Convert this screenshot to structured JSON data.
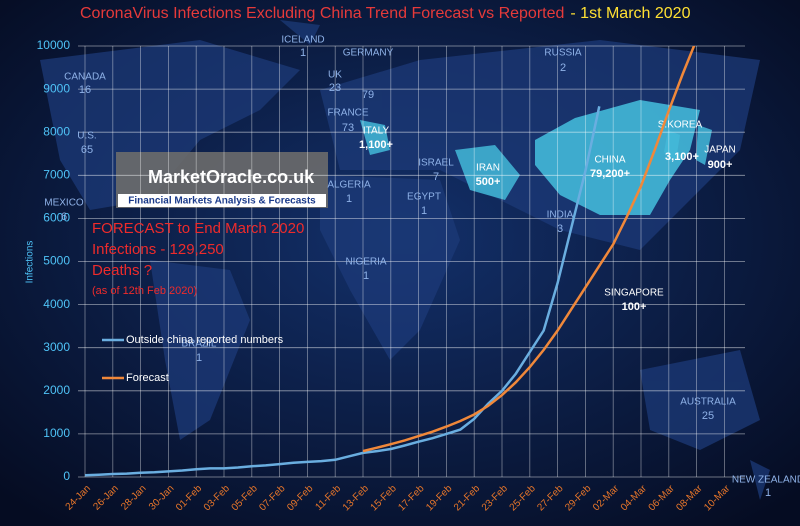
{
  "chart_data": {
    "type": "line",
    "title": "CoronaVirus Infections Excluding China Trend Forecast vs Reported",
    "title_date": "- 1st March 2020",
    "y_label": "Infections",
    "categories": [
      "24-Jan",
      null,
      "26-Jan",
      null,
      "28-Jan",
      null,
      "30-Jan",
      null,
      "01-Feb",
      null,
      "03-Feb",
      null,
      "05-Feb",
      null,
      "07-Feb",
      null,
      "09-Feb",
      null,
      "11-Feb",
      null,
      "13-Feb",
      null,
      "15-Feb",
      null,
      "17-Feb",
      null,
      "19-Feb",
      null,
      "21-Feb",
      null,
      "23-Feb",
      null,
      "25-Feb",
      null,
      "27-Feb",
      null,
      "29-Feb",
      null,
      "02-Mar",
      null,
      "04-Mar",
      null,
      "06-Mar",
      null,
      "08-Mar",
      null,
      "10-Mar"
    ],
    "series": [
      {
        "name": "Outside china reported numbers",
        "color": "#6aaee0",
        "values": [
          40,
          50,
          70,
          80,
          100,
          110,
          130,
          150,
          180,
          200,
          200,
          220,
          250,
          270,
          300,
          330,
          350,
          370,
          400,
          480,
          560,
          600,
          650,
          730,
          820,
          900,
          1000,
          1100,
          1350,
          1700,
          2000,
          2400,
          2900,
          3400,
          4500,
          5800,
          7100,
          8600,
          null,
          null,
          null,
          null,
          null,
          null,
          null,
          null,
          null
        ]
      },
      {
        "name": "Forecast",
        "color": "#f0883a",
        "values": [
          null,
          null,
          null,
          null,
          null,
          null,
          null,
          null,
          null,
          null,
          null,
          null,
          null,
          null,
          null,
          null,
          null,
          null,
          null,
          null,
          600,
          680,
          760,
          850,
          950,
          1050,
          1170,
          1300,
          1450,
          1650,
          1900,
          2200,
          2550,
          2950,
          3400,
          3900,
          4400,
          4900,
          5400,
          6050,
          6750,
          7600,
          8500,
          9350,
          10150,
          null,
          null
        ]
      }
    ],
    "ylim": [
      0,
      10000
    ],
    "yticks": [
      0,
      1000,
      2000,
      3000,
      4000,
      5000,
      6000,
      7000,
      8000,
      9000,
      10000
    ],
    "grid": true,
    "forecast_note": [
      "FORECAST to End March 2020",
      "Infections - 129,250",
      "Deaths ?",
      "(as of 12th Feb 2020)"
    ],
    "logo": {
      "name": "MarketOracle.co.uk",
      "tagline": "Financial Markets Analysis & Forecasts"
    },
    "countries": [
      {
        "name": "ICELAND",
        "count": "1"
      },
      {
        "name": "GERMANY",
        "count": "79"
      },
      {
        "name": "UK",
        "count": "23"
      },
      {
        "name": "CANADA",
        "count": "16"
      },
      {
        "name": "FRANCE",
        "count": "73"
      },
      {
        "name": "ITALY",
        "count": "1,100+"
      },
      {
        "name": "U.S.",
        "count": "65"
      },
      {
        "name": "RUSSIA",
        "count": "2"
      },
      {
        "name": "ISRAEL",
        "count": "7"
      },
      {
        "name": "IRAN",
        "count": "500+"
      },
      {
        "name": "CHINA",
        "count": "79,200+"
      },
      {
        "name": "S.KOREA",
        "count": "3,100+"
      },
      {
        "name": "JAPAN",
        "count": "900+"
      },
      {
        "name": "ALGERIA",
        "count": "1"
      },
      {
        "name": "EGYPT",
        "count": "1"
      },
      {
        "name": "MEXICO",
        "count": "6"
      },
      {
        "name": "INDIA",
        "count": "3"
      },
      {
        "name": "NIGERIA",
        "count": "1"
      },
      {
        "name": "SINGAPORE",
        "count": "100+"
      },
      {
        "name": "BRAZIL",
        "count": "1"
      },
      {
        "name": "AUSTRALIA",
        "count": "25"
      },
      {
        "name": "NEW ZEALAND",
        "count": "1"
      }
    ]
  }
}
